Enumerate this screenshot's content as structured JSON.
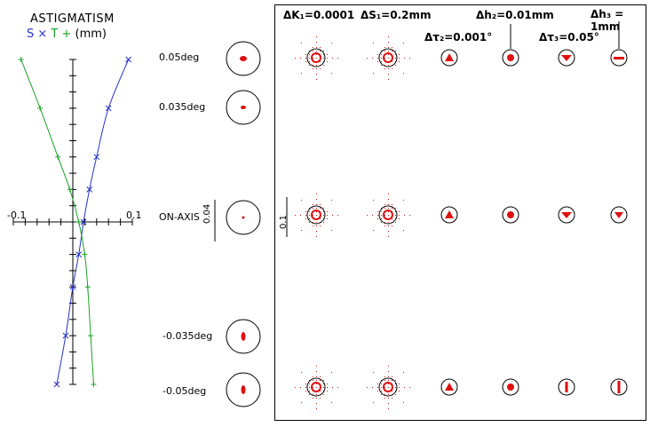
{
  "astigmatism": {
    "title": "ASTIGMATISM",
    "legend_s": "S × ",
    "legend_t": "T + ",
    "unit": "(mm)",
    "axis_min_label": "-0.1",
    "axis_max_label": "0.1",
    "colors": {
      "S": "#2432c8",
      "T": "#1aa326"
    }
  },
  "chart_data": {
    "type": "line",
    "x_range": [
      -0.1,
      0.1
    ],
    "y_range": [
      -0.05,
      0.05
    ],
    "series": [
      {
        "name": "S",
        "points": [
          [
            0.0935,
            0.05
          ],
          [
            0.06,
            0.035
          ],
          [
            0.04,
            0.02
          ],
          [
            0.028,
            0.01
          ],
          [
            0.018,
            0.0
          ],
          [
            0.01,
            -0.01
          ],
          [
            0.0,
            -0.02
          ],
          [
            -0.012,
            -0.035
          ],
          [
            -0.027,
            -0.05
          ]
        ]
      },
      {
        "name": "T",
        "points": [
          [
            -0.087,
            0.05
          ],
          [
            -0.055,
            0.035
          ],
          [
            -0.025,
            0.02
          ],
          [
            -0.005,
            0.01
          ],
          [
            0.01,
            0.0
          ],
          [
            0.02,
            -0.01
          ],
          [
            0.025,
            -0.02
          ],
          [
            0.03,
            -0.035
          ],
          [
            0.035,
            -0.05
          ]
        ]
      }
    ]
  },
  "field_spots": {
    "scale_label": "0.04",
    "rows": [
      {
        "label": "0.05deg"
      },
      {
        "label": "0.035deg"
      },
      {
        "label": "ON-AXIS"
      },
      {
        "label": "-0.035deg"
      },
      {
        "label": "-0.05deg"
      }
    ]
  },
  "tolerance_panel": {
    "scale_label": "0.1",
    "columns": [
      {
        "label": "ΔK₁=0.0001"
      },
      {
        "label": "ΔS₁=0.2mm"
      },
      {
        "label": "Δτ₂=0.001°"
      },
      {
        "label": "Δh₂=0.01mm"
      },
      {
        "label": "Δτ₃=0.05°"
      },
      {
        "label": "Δh₃ = 1mm"
      }
    ]
  }
}
